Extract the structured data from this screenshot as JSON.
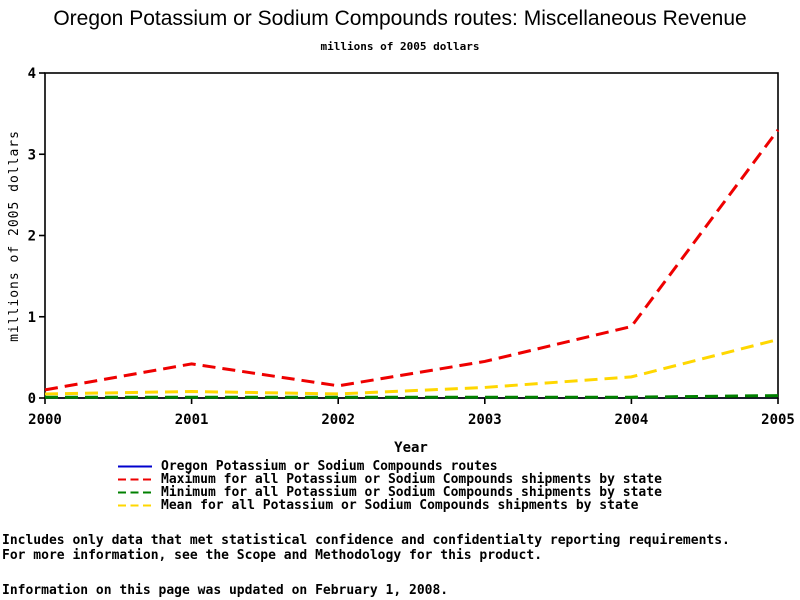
{
  "title": "Oregon Potassium or Sodium Compounds routes: Miscellaneous Revenue",
  "subtitle": "millions of 2005 dollars",
  "chart_data": {
    "type": "line",
    "x": [
      2000,
      2001,
      2002,
      2003,
      2004,
      2005
    ],
    "xlabel": "Year",
    "ylabel": "millions of 2005 dollars",
    "ylim": [
      0,
      4
    ],
    "yticks": [
      0,
      1,
      2,
      3,
      4
    ],
    "grid": false,
    "legend_position": "bottom-left",
    "series": [
      {
        "name": "Oregon Potassium or Sodium Compounds routes",
        "color": "#0000CD",
        "style": "solid",
        "values": [
          0,
          0,
          0,
          0,
          0,
          0
        ]
      },
      {
        "name": "Maximum for all Potassium or Sodium Compounds shipments by state",
        "color": "#EE0000",
        "style": "dashed",
        "values": [
          0.1,
          0.42,
          0.15,
          0.45,
          0.88,
          3.3
        ]
      },
      {
        "name": "Minimum for all Potassium or Sodium Compounds shipments by state",
        "color": "#008000",
        "style": "dashed",
        "values": [
          0.01,
          0.01,
          0.01,
          0.01,
          0.01,
          0.03
        ]
      },
      {
        "name": "Mean for all Potassium or Sodium Compounds shipments by state",
        "color": "#FFD700",
        "style": "dashed",
        "values": [
          0.05,
          0.08,
          0.05,
          0.13,
          0.26,
          0.72
        ]
      }
    ]
  },
  "footer": {
    "line1": "Includes only data that met statistical confidence and confidentialty reporting requirements.",
    "line2": "For more information, see the Scope and Methodology for this product.",
    "line3": "Information on this page was updated on February 1, 2008."
  }
}
